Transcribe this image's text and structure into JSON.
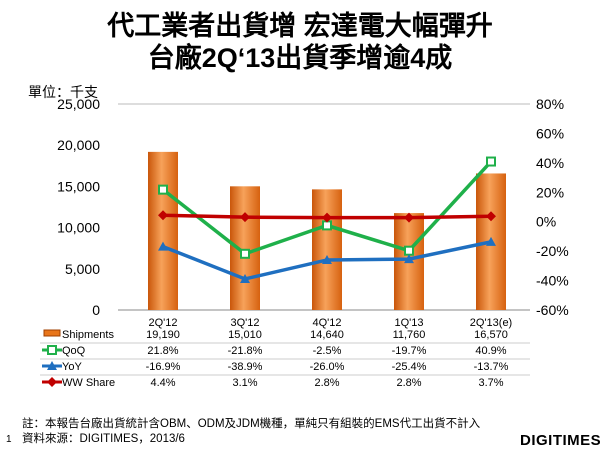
{
  "title_line1": "代工業者出貨增 宏達電大幅彈升",
  "title_line2": "台廠2Q‘13出貨季增逾4成",
  "unit_label": "單位：千支",
  "footnote": "註：本報告台廠出貨統計含OBM、ODM及JDM機種，單純只有組裝的EMS代工出貨不計入",
  "source": "資料來源：DIGITIMES，2013/6",
  "page_number": "1",
  "logo": "DIGITIMES",
  "chart_data": {
    "type": "bar+line",
    "categories": [
      "2Q'12",
      "3Q'12",
      "4Q'12",
      "1Q'13",
      "2Q'13(e)"
    ],
    "left_axis": {
      "ylim": [
        0,
        25000
      ],
      "ticks": [
        "0",
        "5,000",
        "10,000",
        "15,000",
        "20,000",
        "25,000"
      ]
    },
    "right_axis": {
      "ylim": [
        -60,
        80
      ],
      "ticks": [
        "-60%",
        "-40%",
        "-20%",
        "0%",
        "20%",
        "40%",
        "60%",
        "80%"
      ]
    },
    "grid": false,
    "legend": "data-table",
    "series": [
      {
        "name": "Shipments",
        "type": "bar",
        "axis": "left",
        "color": "#E8751A",
        "values": [
          19190,
          15010,
          14640,
          11760,
          16570
        ],
        "labels": [
          "19,190",
          "15,010",
          "14,640",
          "11,760",
          "16,570"
        ]
      },
      {
        "name": "QoQ",
        "type": "line",
        "axis": "right",
        "color": "#1FB04A",
        "marker": "square",
        "values": [
          21.8,
          -21.8,
          -2.5,
          -19.7,
          40.9
        ],
        "labels": [
          "21.8%",
          "-21.8%",
          "-2.5%",
          "-19.7%",
          "40.9%"
        ]
      },
      {
        "name": "YoY",
        "type": "line",
        "axis": "right",
        "color": "#1F6FC0",
        "marker": "triangle",
        "values": [
          -16.9,
          -38.9,
          -26.0,
          -25.4,
          -13.7
        ],
        "labels": [
          "-16.9%",
          "-38.9%",
          "-26.0%",
          "-25.4%",
          "-13.7%"
        ]
      },
      {
        "name": "WW Share",
        "type": "line",
        "axis": "right",
        "color": "#C00000",
        "marker": "diamond",
        "values": [
          4.4,
          3.1,
          2.8,
          2.8,
          3.7
        ],
        "labels": [
          "4.4%",
          "3.1%",
          "2.8%",
          "2.8%",
          "3.7%"
        ]
      }
    ]
  }
}
